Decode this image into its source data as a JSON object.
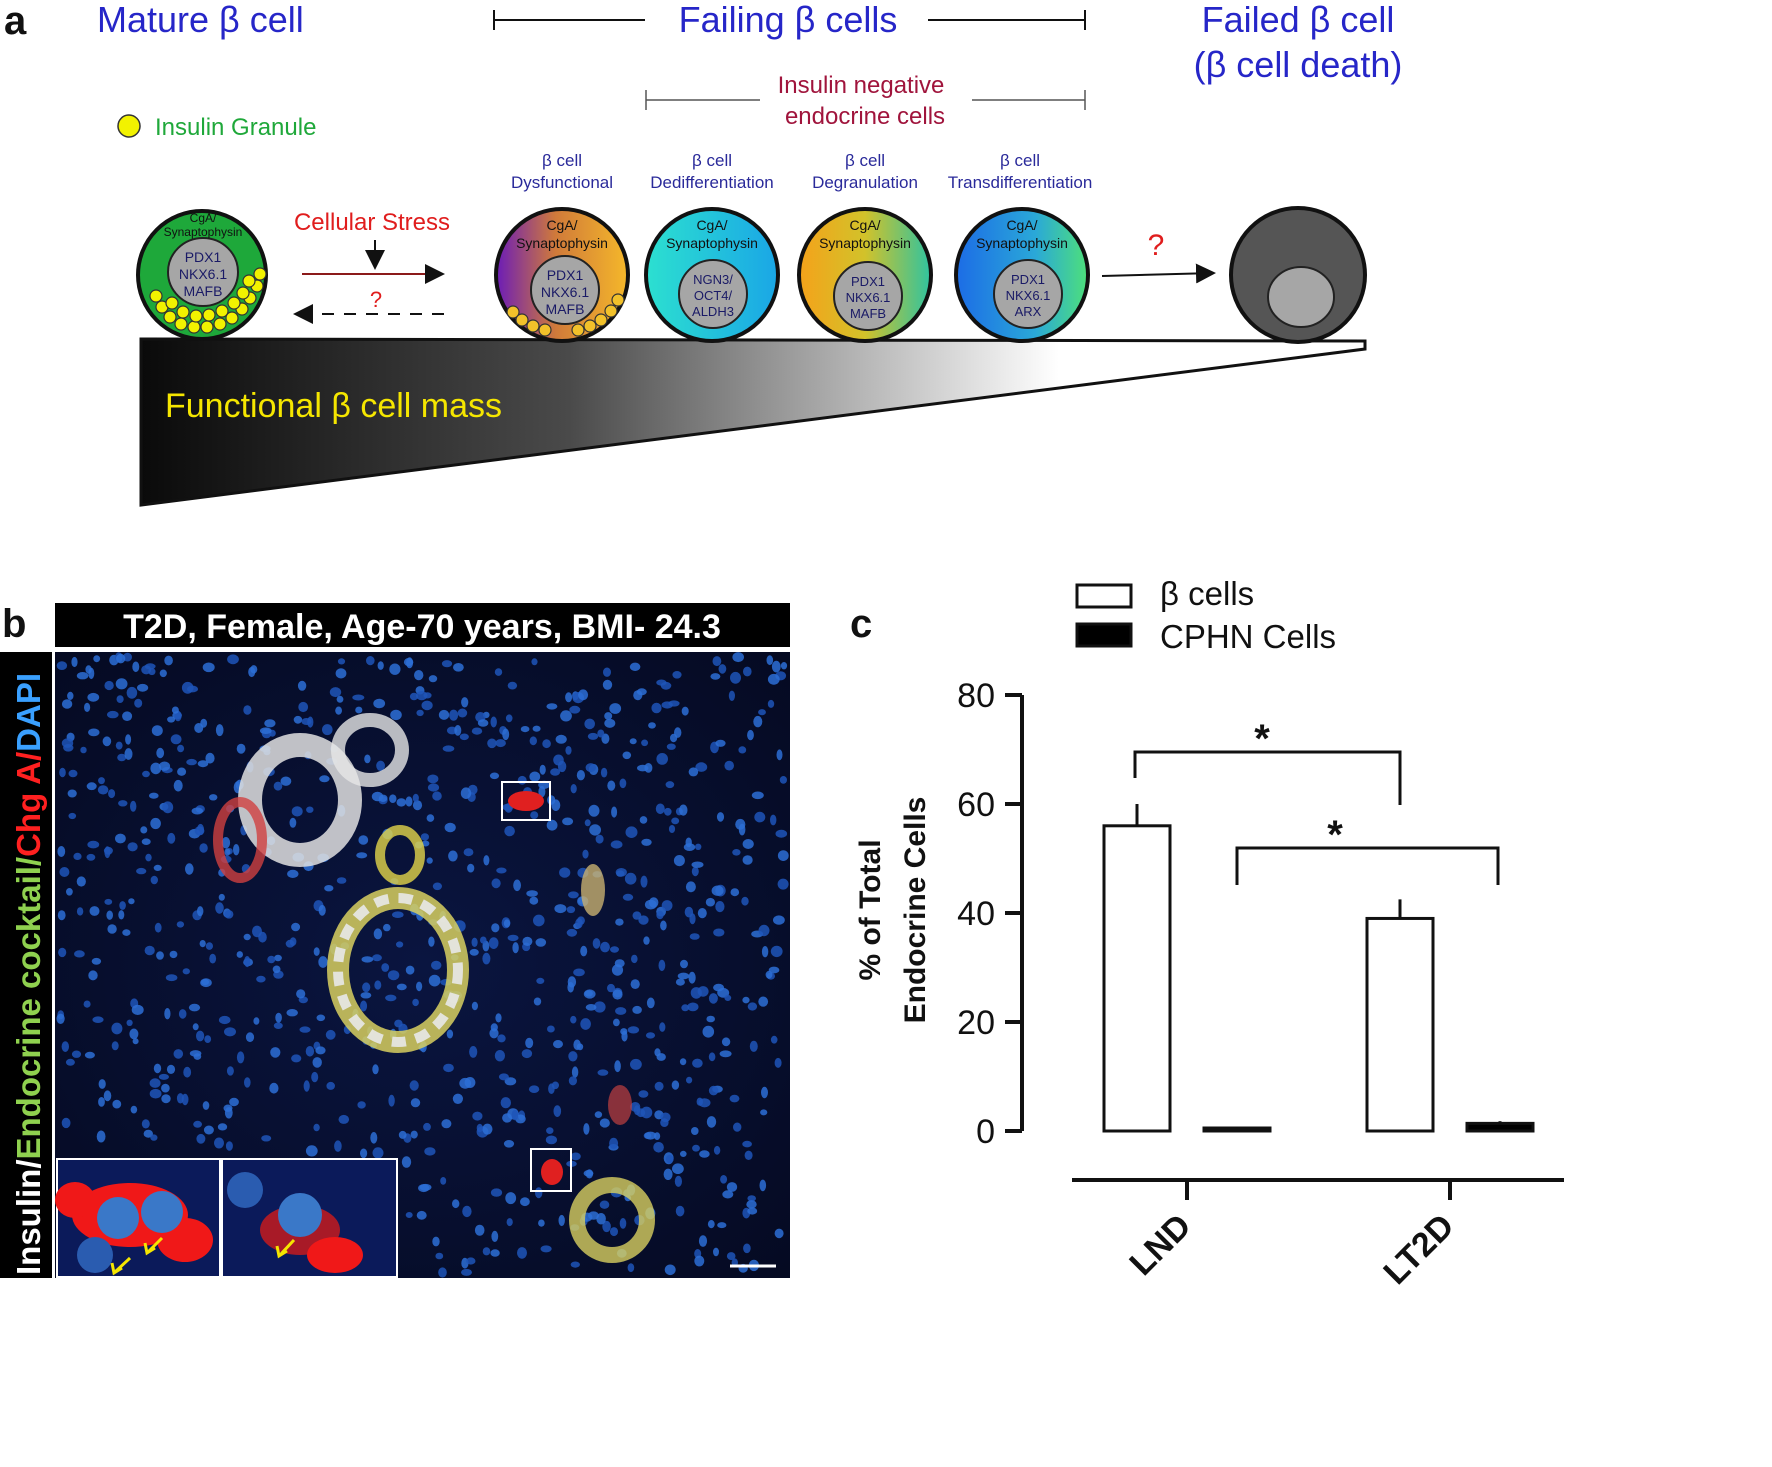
{
  "panel_a": {
    "label": "a",
    "mature_title": "Mature β cell",
    "failing_title": "Failing β cells",
    "failed_title_line1": "Failed β cell",
    "failed_title_line2": "(β cell death)",
    "insulin_negative_line1": "Insulin negative",
    "insulin_negative_line2": "endocrine cells",
    "legend_insulin_granule": "Insulin Granule",
    "cellular_stress": "Cellular Stress",
    "question_mark": "?",
    "functional_mass": "Functional β cell mass",
    "stages": [
      {
        "line1": "β cell",
        "line2": "Dysfunctional"
      },
      {
        "line1": "β cell",
        "line2": "Dedifferentiation"
      },
      {
        "line1": "β cell",
        "line2": "Degranulation"
      },
      {
        "line1": "β cell",
        "line2": "Transdifferentiation"
      }
    ],
    "cells": [
      {
        "top1": "CgA/",
        "top2": "Synaptophysin",
        "n1": "PDX1",
        "n2": "NKX6.1",
        "n3": "MAFB"
      },
      {
        "top1": "CgA/",
        "top2": "Synaptophysin",
        "n1": "PDX1",
        "n2": "NKX6.1",
        "n3": "MAFB"
      },
      {
        "top1": "CgA/",
        "top2": "Synaptophysin",
        "n1": "NGN3/",
        "n2": "OCT4/",
        "n3": "ALDH3"
      },
      {
        "top1": "CgA/",
        "top2": "Synaptophysin",
        "n1": "PDX1",
        "n2": "NKX6.1",
        "n3": "MAFB"
      },
      {
        "top1": "CgA/",
        "top2": "Synaptophysin",
        "n1": "PDX1",
        "n2": "NKX6.1",
        "n3": "ARX"
      }
    ],
    "colors": {
      "title_blue": "#2626c8",
      "stress_red": "#e01d1d",
      "granule_yellow": "#f2f200",
      "mass_text_yellow": "#f5e600",
      "insulin_neg_red": "#a0143c",
      "legend_green": "#1fa83a"
    }
  },
  "panel_b": {
    "label": "b",
    "header": "T2D, Female, Age-70 years, BMI- 24.3",
    "stain_insulin": "Insulin/",
    "stain_endocrine": "Endocrine cocktail/",
    "stain_chga": "Chg A/",
    "stain_dapi": "DAPI"
  },
  "panel_c": {
    "label": "c",
    "significance": "*",
    "chart_data": {
      "type": "bar",
      "categories": [
        "LND",
        "LT2D"
      ],
      "series": [
        {
          "name": "β cells",
          "values": [
            56,
            39
          ],
          "errors": [
            4,
            3.5
          ],
          "fill": "#ffffff"
        },
        {
          "name": "CPHN Cells",
          "values": [
            0.4,
            1.4
          ],
          "errors": [
            0.2,
            0.4
          ],
          "fill": "#000000"
        }
      ],
      "ylabel_line1": "% of Total",
      "ylabel_line2": "Endocrine Cells",
      "ylim": [
        0,
        80
      ],
      "yticks": [
        0,
        20,
        40,
        60,
        80
      ],
      "legend_position": "top",
      "grid": false
    }
  }
}
